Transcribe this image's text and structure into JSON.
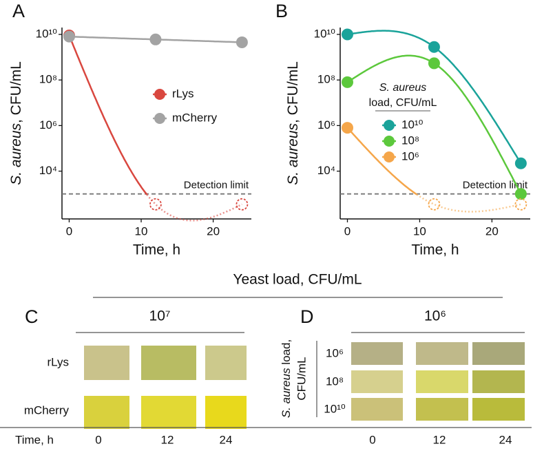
{
  "figure_labels": [
    "A",
    "B",
    "C",
    "D"
  ],
  "chart_data": [
    {
      "type": "line",
      "log_y": true,
      "xlabel": "Time, h",
      "ylabel_italic": "S. aureus",
      "ylabel": ", CFU/mL",
      "x": [
        0,
        12,
        24
      ],
      "xlim": [
        -1,
        25.3
      ],
      "xticks": [
        0,
        10,
        20
      ],
      "ylim": [
        80,
        20000000000
      ],
      "yticks": [
        {
          "value": 10000,
          "label": "10⁴"
        },
        {
          "value": 1000000,
          "label": "10⁶"
        },
        {
          "value": 100000000,
          "label": "10⁸"
        },
        {
          "value": 10000000000,
          "label": "10¹⁰"
        }
      ],
      "detection_limit": {
        "value": 1000,
        "label": "Detection limit"
      },
      "legend_position": "center",
      "series": [
        {
          "name": "rLys",
          "color": "#d9473f",
          "values": [
            9000000000,
            350,
            350
          ]
        },
        {
          "name": "mCherry",
          "color": "#a3a3a3",
          "values": [
            8000000000,
            6000000000,
            4500000000
          ]
        }
      ]
    },
    {
      "type": "line",
      "log_y": true,
      "xlabel": "Time, h",
      "ylabel_italic": "S. aureus",
      "ylabel": ", CFU/mL",
      "x": [
        0,
        12,
        24
      ],
      "xlim": [
        -1,
        25.3
      ],
      "xticks": [
        0,
        10,
        20
      ],
      "ylim": [
        80,
        20000000000
      ],
      "yticks": [
        {
          "value": 10000,
          "label": "10⁴"
        },
        {
          "value": 1000000,
          "label": "10⁶"
        },
        {
          "value": 100000000,
          "label": "10⁸"
        },
        {
          "value": 10000000000,
          "label": "10¹⁰"
        }
      ],
      "detection_limit": {
        "value": 1000,
        "label": "Detection limit"
      },
      "legend_position": "center-right",
      "legend_title_italic": "S. aureus",
      "legend_title": "load, CFU/mL",
      "series": [
        {
          "name": "10¹⁰",
          "color": "#1aa39a",
          "values": [
            10000000000,
            2800000000,
            22000
          ]
        },
        {
          "name": "10⁸",
          "color": "#5cc83c",
          "values": [
            80000000,
            540000000,
            1000
          ]
        },
        {
          "name": "10⁶",
          "color": "#f5a64a",
          "values": [
            800000,
            350,
            350
          ]
        }
      ]
    }
  ],
  "photo_panels": {
    "title": "Yeast load, CFU/mL",
    "C": {
      "load": "10⁷",
      "rows": [
        "rLys",
        "mCherry"
      ]
    },
    "D": {
      "load": "10⁶",
      "row_title_italic": "S. aureus",
      "row_title": " load,",
      "row_title2": "CFU/mL",
      "rows": [
        "10⁶",
        "10⁸",
        "10¹⁰"
      ]
    },
    "time_label": "Time, h",
    "times": [
      "0",
      "12",
      "24"
    ]
  }
}
